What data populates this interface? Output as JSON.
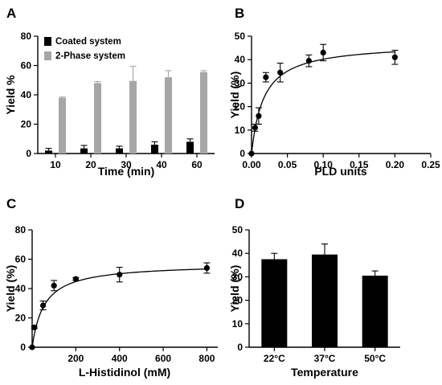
{
  "chart_data": [
    {
      "panel": "A",
      "type": "bar",
      "title": "",
      "xlabel": "Time (min)",
      "ylabel": "Yield %",
      "categories": [
        "10",
        "20",
        "30",
        "40",
        "60"
      ],
      "ylim": [
        0,
        80
      ],
      "yticks": [
        0,
        20,
        40,
        60,
        80
      ],
      "legend_position": "top-left",
      "series": [
        {
          "name": "Coated system",
          "color": "#000000",
          "values": [
            2,
            3.5,
            3.5,
            6,
            8
          ],
          "errors": [
            1.5,
            2,
            1.5,
            2,
            2
          ]
        },
        {
          "name": "2-Phase system",
          "color": "#a6a6a6",
          "values": [
            38,
            48,
            49.5,
            52,
            55.5
          ],
          "errors": [
            0.5,
            1,
            10,
            4.5,
            1
          ]
        }
      ]
    },
    {
      "panel": "B",
      "type": "scatter",
      "title": "",
      "xlabel": "PLD units",
      "ylabel": "Yield (%)",
      "xlim": [
        0,
        0.25
      ],
      "ylim": [
        0,
        50
      ],
      "xticks": [
        "0.00",
        "0.05",
        "0.10",
        "0.15",
        "0.20",
        "0.25"
      ],
      "yticks": [
        0,
        10,
        20,
        30,
        40,
        50
      ],
      "points": [
        {
          "x": 0,
          "y": 0,
          "err": 0
        },
        {
          "x": 0.005,
          "y": 11,
          "err": 1.5
        },
        {
          "x": 0.01,
          "y": 16,
          "err": 3.5
        },
        {
          "x": 0.02,
          "y": 32.5,
          "err": 2
        },
        {
          "x": 0.04,
          "y": 34.5,
          "err": 4
        },
        {
          "x": 0.08,
          "y": 39.5,
          "err": 2.5
        },
        {
          "x": 0.1,
          "y": 43,
          "err": 3.5
        },
        {
          "x": 0.2,
          "y": 41,
          "err": 3
        }
      ],
      "fit": {
        "type": "hyperbolic",
        "vmax": 47,
        "k": 0.017,
        "xrange": [
          0,
          0.2
        ]
      }
    },
    {
      "panel": "C",
      "type": "scatter",
      "title": "",
      "xlabel": "L-Histidinol (mM)",
      "ylabel": "Yield (%)",
      "xlim": [
        0,
        850
      ],
      "ylim": [
        0,
        80
      ],
      "xticks": [
        "200",
        "400",
        "600",
        "800"
      ],
      "yticks": [
        0,
        20,
        40,
        60,
        80
      ],
      "points": [
        {
          "x": 0,
          "y": 0,
          "err": 0
        },
        {
          "x": 10,
          "y": 13.5,
          "err": 0.8
        },
        {
          "x": 50,
          "y": 28.5,
          "err": 3
        },
        {
          "x": 100,
          "y": 42,
          "err": 3.5
        },
        {
          "x": 200,
          "y": 46.5,
          "err": 1
        },
        {
          "x": 400,
          "y": 49.5,
          "err": 5
        },
        {
          "x": 800,
          "y": 54,
          "err": 3.5
        }
      ],
      "fit": {
        "type": "hyperbolic",
        "vmax": 57,
        "k": 55,
        "xrange": [
          0,
          800
        ]
      }
    },
    {
      "panel": "D",
      "type": "bar",
      "title": "",
      "xlabel": "Temperature",
      "ylabel": "Yield (%)",
      "categories": [
        "22°C",
        "37°C",
        "50°C"
      ],
      "ylim": [
        0,
        50
      ],
      "yticks": [
        0,
        10,
        20,
        30,
        40,
        50
      ],
      "series": [
        {
          "name": "",
          "color": "#000000",
          "values": [
            37.5,
            39.5,
            30.5
          ],
          "errors": [
            2.5,
            4.5,
            2
          ]
        }
      ]
    }
  ],
  "panel_letters": [
    "A",
    "B",
    "C",
    "D"
  ]
}
